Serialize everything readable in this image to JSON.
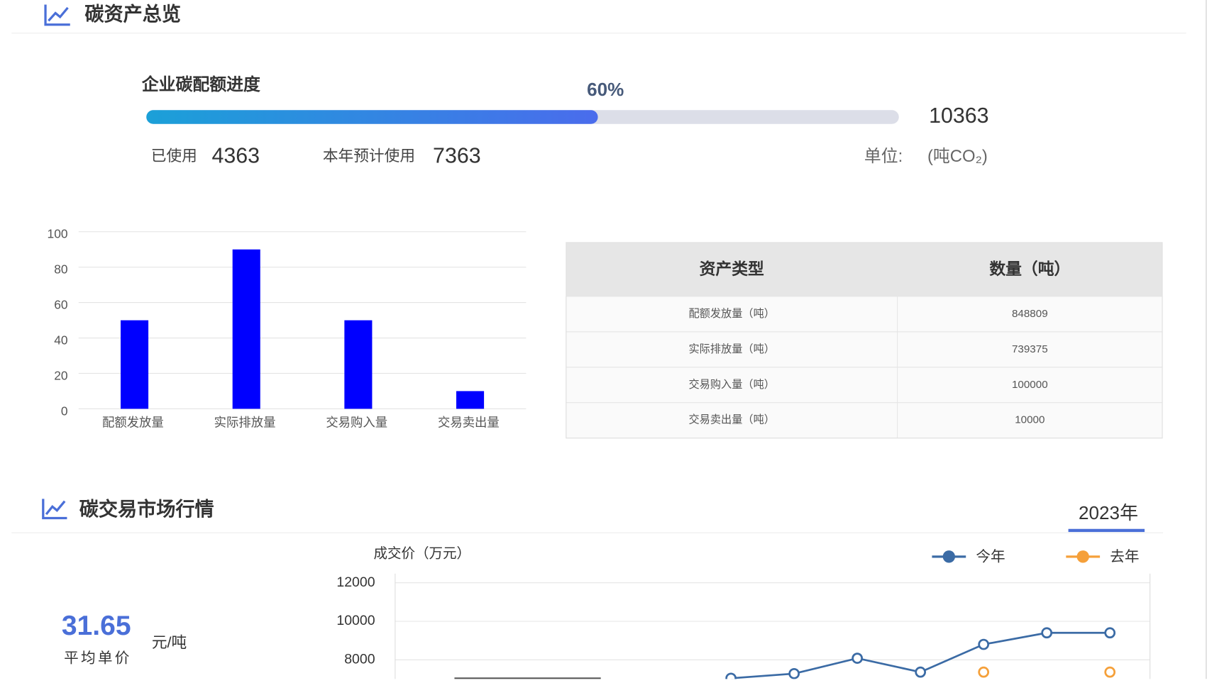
{
  "sections": [
    {
      "title": "碳资产总览"
    },
    {
      "title": "碳交易市场行情"
    }
  ],
  "quota": {
    "title": "企业碳配额进度",
    "percent": {
      "value": 60,
      "label": "60%"
    },
    "total": 10363,
    "used_label": "已使用",
    "used": 4363,
    "forecast_label": "本年预计使用",
    "forecast": 7363,
    "unit_label": "单位:",
    "unit": "(吨CO₂)"
  },
  "table": {
    "header": [
      "资产类型",
      "数量（吨）"
    ],
    "rows": [
      [
        "配额发放量（吨）",
        848809
      ],
      [
        "实际排放量（吨）",
        739375
      ],
      [
        "交易购入量（吨）",
        100000
      ],
      [
        "交易卖出量（吨）",
        10000
      ]
    ]
  },
  "market": {
    "year": "2023年",
    "avg_price": "31.65",
    "unit": "元/吨",
    "avg_label": "平均单价"
  },
  "chart_data": [
    {
      "type": "bar",
      "categories": [
        "配额发放量",
        "实际排放量",
        "交易购入量",
        "交易卖出量"
      ],
      "values": [
        50,
        90,
        50,
        10
      ],
      "color": "#0000ff",
      "ylim": [
        0,
        100
      ],
      "yticks": [
        0,
        20,
        40,
        60,
        80,
        100
      ],
      "grid": true
    },
    {
      "type": "line",
      "y_label": "成交价（万元）",
      "categories": [
        null,
        null,
        null,
        null,
        null,
        null,
        null,
        null,
        null,
        null,
        null,
        null
      ],
      "series": [
        {
          "name": "今年",
          "color": "#3b6ba5",
          "values": [
            null,
            null,
            null,
            null,
            null,
            7040,
            7280,
            8080,
            7360,
            8800,
            9400,
            9400
          ]
        },
        {
          "name": "去年",
          "color": "#f5a03a",
          "values": [
            null,
            null,
            null,
            null,
            null,
            null,
            null,
            null,
            null,
            7360,
            null,
            7360
          ]
        }
      ],
      "ylim": [
        6960,
        12000
      ],
      "yticks": [
        8000,
        10000,
        12000
      ],
      "grid": true,
      "legend": "top-right"
    }
  ]
}
